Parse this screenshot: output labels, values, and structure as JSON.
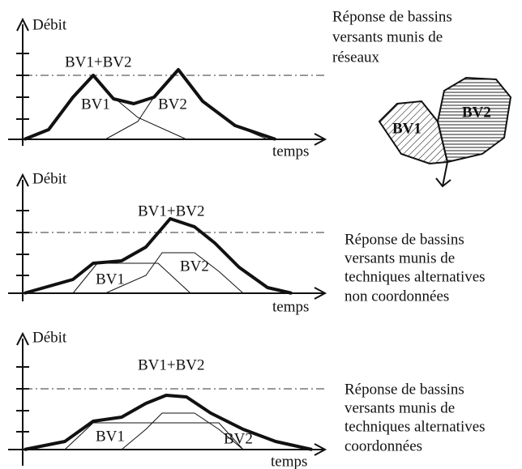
{
  "panels": [
    {
      "y_axis_label": "Débit",
      "x_axis_label": "temps",
      "sum_label": "BV1+BV2",
      "bv1_label": "BV1",
      "bv2_label": "BV2",
      "description": [
        "Réponse de bassins",
        "versants munis de",
        "réseaux"
      ],
      "basins": [
        "BV1",
        "BV2"
      ]
    },
    {
      "y_axis_label": "Débit",
      "x_axis_label": "temps",
      "sum_label": "BV1+BV2",
      "bv1_label": "BV1",
      "bv2_label": "BV2",
      "description": [
        "Réponse de bassins",
        "versants munis de",
        "techniques alternatives",
        "non coordonnées"
      ]
    },
    {
      "y_axis_label": "Débit",
      "x_axis_label": "temps",
      "sum_label": "BV1+BV2",
      "bv1_label": "BV1",
      "bv2_label": "BV2",
      "description": [
        "Réponse de bassins",
        "versants munis de",
        "techniques alternatives",
        "coordonnées"
      ]
    }
  ]
}
